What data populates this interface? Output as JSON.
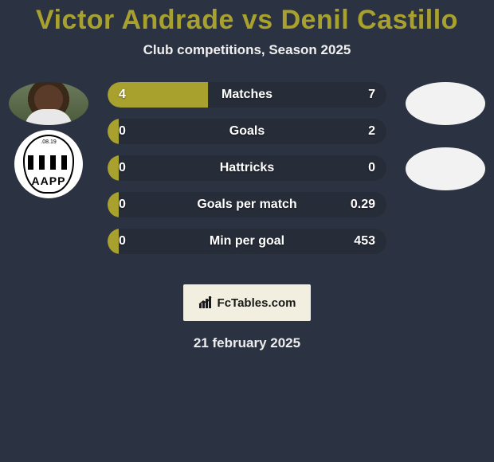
{
  "title": "Victor Andrade vs Denil Castillo",
  "subtitle": "Club competitions, Season 2025",
  "brand": "FcTables.com",
  "date": "21 february 2025",
  "colors": {
    "accent": "#a9a12e",
    "bg": "#2b3241",
    "row_bg": "#262c38",
    "brand_bg": "#f2efe0"
  },
  "player1": {
    "name": "Victor Andrade",
    "club_text": ".08.19",
    "club_abbr": "AAPP"
  },
  "player2": {
    "name": "Denil Castillo"
  },
  "rows": [
    {
      "label": "Matches",
      "left": "4",
      "right": "7",
      "left_pct": 36
    },
    {
      "label": "Goals",
      "left": "0",
      "right": "2",
      "left_pct": 4
    },
    {
      "label": "Hattricks",
      "left": "0",
      "right": "0",
      "left_pct": 4
    },
    {
      "label": "Goals per match",
      "left": "0",
      "right": "0.29",
      "left_pct": 4
    },
    {
      "label": "Min per goal",
      "left": "0",
      "right": "453",
      "left_pct": 4
    }
  ]
}
